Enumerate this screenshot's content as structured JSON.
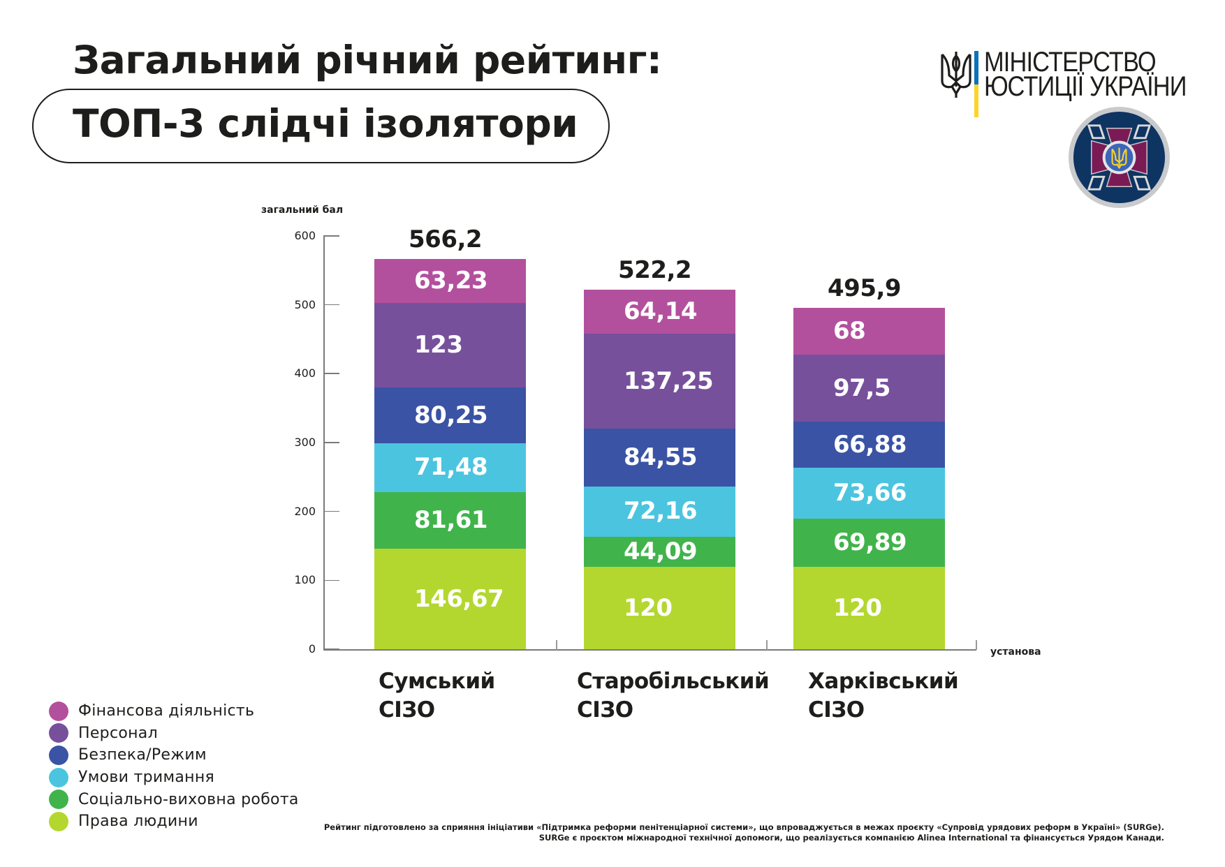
{
  "header": {
    "title_line1": "Загальний річний рейтинг:",
    "title_line2": "ТОП-3 слідчі ізолятори"
  },
  "logos": {
    "ministry_line1": "МІНІСТЕРСТВО",
    "ministry_line2": "ЮСТИЦІЇ УКРАЇНИ",
    "ministry_icon": "trident-icon",
    "service_emblem_icon": "penitentiary-service-emblem-icon",
    "flag_colors": [
      "#0a72b9",
      "#fcd429"
    ]
  },
  "chart_data": {
    "type": "bar",
    "stacked": true,
    "title": "Загальний річний рейтинг: ТОП-3 слідчі ізолятори",
    "ylabel": "загальний бал",
    "xlabel": "установа",
    "ylim": [
      0,
      600
    ],
    "yticks": [
      0,
      100,
      200,
      300,
      400,
      500,
      600
    ],
    "grid": false,
    "legend_position": "bottom-left",
    "categories": [
      "Сумський СІЗО",
      "Старобільський СІЗО",
      "Харківський СІЗО"
    ],
    "category_lines": [
      [
        "Сумський",
        "СІЗО"
      ],
      [
        "Старобільський",
        "СІЗО"
      ],
      [
        "Харківський",
        "СІЗО"
      ]
    ],
    "totals": [
      "566,2",
      "522,2",
      "495,9"
    ],
    "total_values": [
      566.2,
      522.2,
      495.9
    ],
    "series": [
      {
        "name": "Права людини",
        "color": "#b3d72e",
        "values": [
          146.67,
          120,
          120
        ],
        "labels": [
          "146,67",
          "120",
          "120"
        ]
      },
      {
        "name": "Соціально-виховна робота",
        "color": "#41b34b",
        "values": [
          81.61,
          44.09,
          69.89
        ],
        "labels": [
          "81,61",
          "44,09",
          "69,89"
        ]
      },
      {
        "name": "Умови тримання",
        "color": "#4bc5df",
        "values": [
          71.48,
          72.16,
          73.66
        ],
        "labels": [
          "71,48",
          "72,16",
          "73,66"
        ]
      },
      {
        "name": "Безпека/Режим",
        "color": "#3a53a5",
        "values": [
          80.25,
          84.55,
          66.88
        ],
        "labels": [
          "80,25",
          "84,55",
          "66,88"
        ]
      },
      {
        "name": "Персонал",
        "color": "#77509c",
        "values": [
          123,
          137.25,
          97.5
        ],
        "labels": [
          "123",
          "137,25",
          "97,5"
        ]
      },
      {
        "name": "Фінансова діяльність",
        "color": "#b3509d",
        "values": [
          63.23,
          64.14,
          68
        ],
        "labels": [
          "63,23",
          "64,14",
          "68"
        ]
      }
    ]
  },
  "legend": [
    {
      "label": "Фінансова діяльність",
      "color": "#b3509d"
    },
    {
      "label": "Персонал",
      "color": "#77509c"
    },
    {
      "label": "Безпека/Режим",
      "color": "#3a53a5"
    },
    {
      "label": "Умови тримання",
      "color": "#4bc5df"
    },
    {
      "label": "Соціально-виховна робота",
      "color": "#41b34b"
    },
    {
      "label": "Права людини",
      "color": "#b3d72e"
    }
  ],
  "footnote": {
    "line1": "Рейтинг підготовлено за сприяння ініціативи «Підтримка реформи пенітенціарної системи», що впроваджується в межах проєкту «Супровід урядових реформ в Україні» (SURGe).",
    "line2": "SURGe є проєктом міжнародної технічної допомоги, що реалізується компанією Alinea International та фінансується Урядом Канади."
  }
}
